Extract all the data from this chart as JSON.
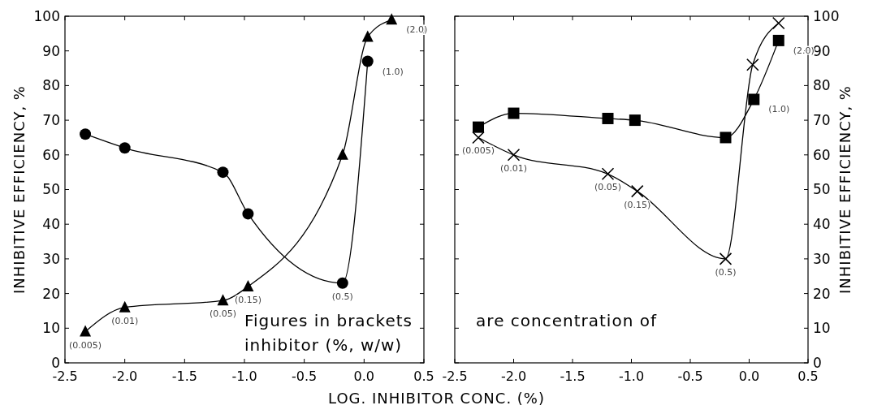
{
  "chart_data": [
    {
      "type": "line",
      "ylabel": "INHIBITIVE EFFICIENCY, %",
      "xlabel": "LOG. INHIBITOR CONC. (%)",
      "xlim": [
        -2.5,
        0.5
      ],
      "ylim": [
        0,
        100
      ],
      "xticks": [
        {
          "value": -2.5,
          "label": "-2.5"
        },
        {
          "value": -2,
          "label": "-2.0"
        },
        {
          "value": -1.5,
          "label": "-1.5"
        },
        {
          "value": -1,
          "label": "-1.0"
        },
        {
          "value": -0.5,
          "label": "-0.5"
        },
        {
          "value": 0,
          "label": "0.0"
        },
        {
          "value": 0.5,
          "label": "0.5"
        }
      ],
      "yticks": [
        0,
        10,
        20,
        30,
        40,
        50,
        60,
        70,
        80,
        90,
        100
      ],
      "grid": false,
      "line_style": "solid",
      "series": [
        {
          "color": "#000000",
          "marker": "circle",
          "x": [
            -2.33,
            -2.0,
            -1.18,
            -0.97,
            -0.18,
            0.03
          ],
          "values": [
            66,
            62,
            55,
            43,
            23,
            87
          ]
        },
        {
          "color": "#000000",
          "marker": "triangle",
          "x": [
            -2.33,
            -2.0,
            -1.18,
            -0.97,
            -0.18,
            0.03,
            0.23
          ],
          "values": [
            9,
            16,
            18,
            22,
            60,
            94,
            99
          ]
        }
      ],
      "annotations": [
        {
          "text": "(0.005)",
          "x": -2.33,
          "y": 9
        },
        {
          "text": "(0.01)",
          "x": -2.0,
          "y": 16
        },
        {
          "text": "(0.05)",
          "x": -1.18,
          "y": 18
        },
        {
          "text": "(0.15)",
          "x": -0.97,
          "y": 22
        },
        {
          "text": "(0.5)",
          "x": -0.18,
          "y": 23
        },
        {
          "text": "(1.0)",
          "x": 0.03,
          "y": 87
        },
        {
          "text": "(2.0)",
          "x": 0.23,
          "y": 99
        },
        "Figures in brackets",
        "inhibitor (%, w/w)"
      ]
    },
    {
      "type": "line",
      "ylabel": "INHIBITIVE EFFICIENCY, %",
      "xlim": [
        -2.5,
        0.5
      ],
      "ylim": [
        0,
        100
      ],
      "xticks": [
        {
          "value": -2.5,
          "label": "-2.5"
        },
        {
          "value": -2,
          "label": "-2.0"
        },
        {
          "value": -1.5,
          "label": "-1.5"
        },
        {
          "value": -1,
          "label": "-1.0"
        },
        {
          "value": -0.5,
          "label": "-0.5"
        },
        {
          "value": 0,
          "label": "0.0"
        },
        {
          "value": 0.5,
          "label": "0.5"
        }
      ],
      "yticks": [
        0,
        10,
        20,
        30,
        40,
        50,
        60,
        70,
        80,
        90,
        100
      ],
      "grid": false,
      "line_style": "solid",
      "series": [
        {
          "color": "#000000",
          "marker": "square",
          "x": [
            -2.3,
            -2.0,
            -1.2,
            -0.97,
            -0.2,
            0.04,
            0.25
          ],
          "values": [
            68,
            72,
            70.5,
            70,
            65,
            76,
            93
          ]
        },
        {
          "color": "#000000",
          "marker": "cross",
          "x": [
            -2.3,
            -2.0,
            -1.2,
            -0.95,
            -0.2,
            0.03,
            0.25
          ],
          "values": [
            65,
            60,
            54.5,
            49.5,
            30,
            86,
            98
          ]
        }
      ],
      "annotations": [
        {
          "text": "(0.005)",
          "x": -2.3,
          "y": 65
        },
        {
          "text": "(0.01)",
          "x": -2.0,
          "y": 60
        },
        {
          "text": "(0.05)",
          "x": -1.2,
          "y": 54.5
        },
        {
          "text": "(0.15)",
          "x": -0.95,
          "y": 49.5
        },
        {
          "text": "(0.5)",
          "x": -0.2,
          "y": 30
        },
        {
          "text": "(1.0)",
          "x": 0.04,
          "y": 76
        },
        {
          "text": "(2.0)",
          "x": 0.25,
          "y": 93
        },
        "are concentration of"
      ]
    }
  ]
}
